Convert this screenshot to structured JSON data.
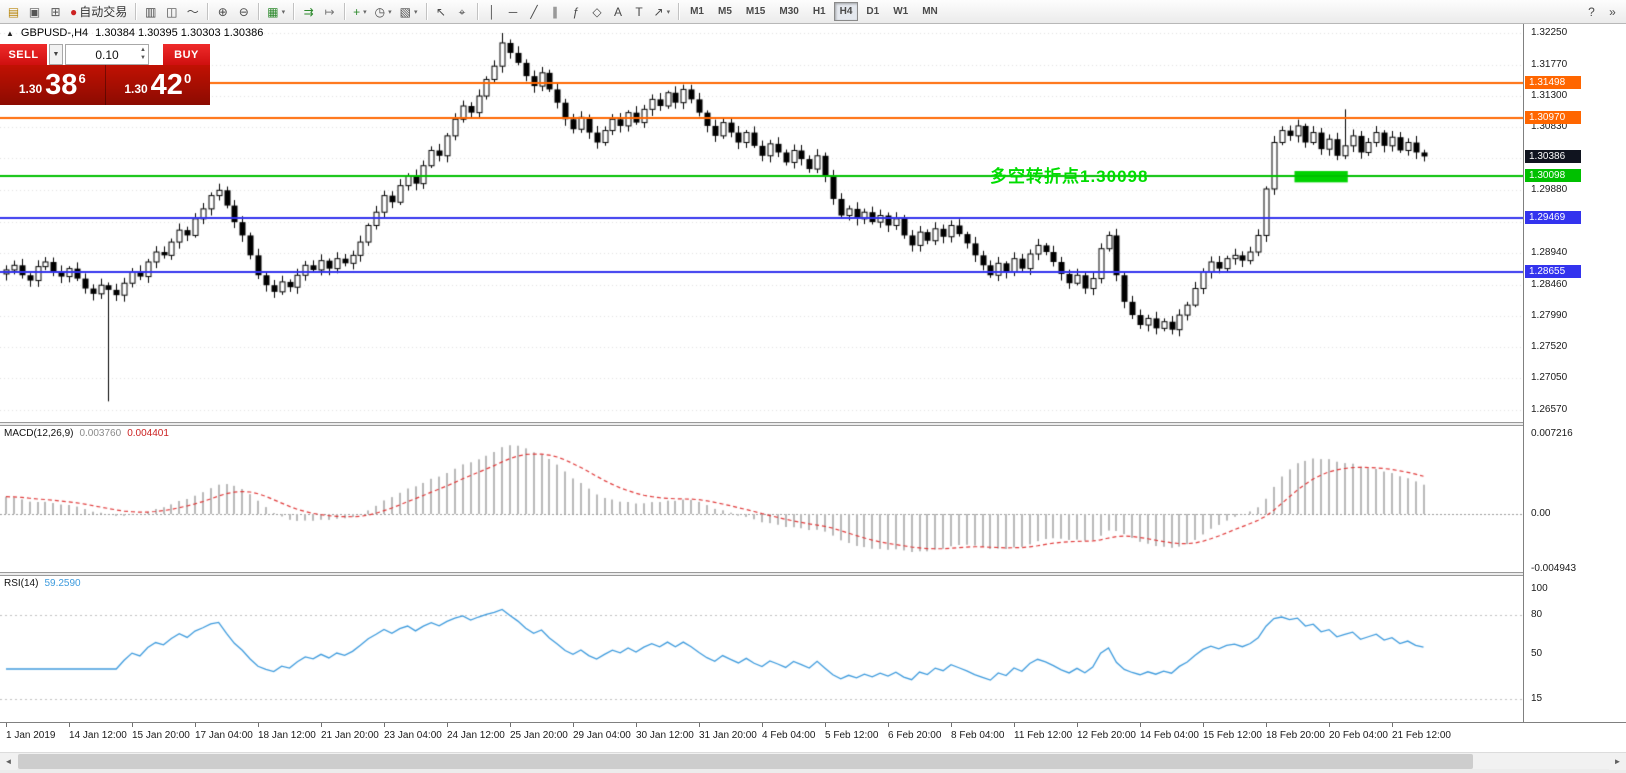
{
  "toolbar": {
    "left_groups": [
      [
        {
          "name": "new-order",
          "glyph": "▤",
          "color": "#b8860b"
        },
        {
          "name": "chart-windows",
          "glyph": "▣",
          "color": "#555555"
        },
        {
          "name": "data-window",
          "glyph": "⊞",
          "color": "#555555"
        },
        {
          "name": "auto-trading",
          "glyph": "●",
          "color": "#cc2222",
          "label": "自动交易"
        }
      ],
      [
        {
          "name": "bar-chart",
          "glyph": "▥"
        },
        {
          "name": "candlestick-chart",
          "glyph": "◫"
        },
        {
          "name": "line-chart",
          "glyph": "～"
        }
      ],
      [
        {
          "name": "zoom-in",
          "glyph": "⊕"
        },
        {
          "name": "zoom-out",
          "glyph": "⊖"
        }
      ],
      [
        {
          "name": "tile-windows",
          "glyph": "▦",
          "color": "#2d8a2d",
          "dropdown": true
        }
      ],
      [
        {
          "name": "auto-scroll",
          "glyph": "⇉",
          "color": "#2d8a2d"
        },
        {
          "name": "chart-shift",
          "glyph": "↦",
          "color": "#777777"
        }
      ],
      [
        {
          "name": "indicators",
          "glyph": "+",
          "color": "#2d8a2d",
          "dropdown": true
        },
        {
          "name": "periods",
          "glyph": "◷",
          "dropdown": true
        },
        {
          "name": "templates",
          "glyph": "▧",
          "dropdown": true
        }
      ],
      [
        {
          "name": "cursor",
          "glyph": "↖"
        },
        {
          "name": "crosshair",
          "glyph": "⌖"
        }
      ],
      [
        {
          "name": "vertical-line",
          "glyph": "│"
        },
        {
          "name": "horizontal-line",
          "glyph": "─"
        },
        {
          "name": "trendline",
          "glyph": "╱"
        },
        {
          "name": "equidistant-channel",
          "glyph": "∥"
        },
        {
          "name": "fibonacci-retracement",
          "glyph": "ƒ"
        },
        {
          "name": "shapes",
          "glyph": "◇"
        },
        {
          "name": "text",
          "glyph": "A"
        },
        {
          "name": "text-label",
          "glyph": "T"
        },
        {
          "name": "arrow-tools",
          "glyph": "↗",
          "dropdown": true
        }
      ]
    ],
    "timeframes": [
      {
        "label": "M1"
      },
      {
        "label": "M5"
      },
      {
        "label": "M15"
      },
      {
        "label": "M30"
      },
      {
        "label": "H1"
      },
      {
        "label": "H4",
        "active": true
      },
      {
        "label": "D1"
      },
      {
        "label": "W1"
      },
      {
        "label": "MN"
      }
    ],
    "right_icons": [
      {
        "name": "help",
        "glyph": "?"
      },
      {
        "name": "toolbar-overflow",
        "glyph": "»"
      }
    ]
  },
  "symbol_bar": {
    "collapse_icon": "▲",
    "symbol": "GBPUSD-,H4",
    "ohlc": "1.30384 1.30395 1.30303 1.30386"
  },
  "trade_panel": {
    "sell_label": "SELL",
    "buy_label": "BUY",
    "volume": "0.10",
    "caret_icon": "▼",
    "spin_up_icon": "▲",
    "spin_down_icon": "▼",
    "sell_price_prefix": "1.30",
    "sell_price_big": "38",
    "sell_price_sup": "6",
    "buy_price_prefix": "1.30",
    "buy_price_big": "42",
    "buy_price_sup": "0"
  },
  "annotation": {
    "text": "多空转折点1.30098",
    "color": "#00dd00",
    "bar": 125,
    "price": 1.3003
  },
  "highlight_rect": {
    "bar_start": 164,
    "bar_end": 170,
    "price_top": 1.3017,
    "price_bottom": 1.3,
    "color": "#00d200"
  },
  "hlines": [
    {
      "price": 1.31498,
      "label": "1.31498",
      "color": "#ff6600"
    },
    {
      "price": 1.3097,
      "label": "1.30970",
      "color": "#ff6600"
    },
    {
      "price": 1.30098,
      "label": "1.30098",
      "color": "#00c000"
    },
    {
      "price": 1.29469,
      "label": "1.29469",
      "color": "#3333ee"
    },
    {
      "price": 1.28655,
      "label": "1.28655",
      "color": "#3333ee"
    }
  ],
  "current_price": {
    "value": 1.30386,
    "label": "1.30386",
    "bg": "#10141f"
  },
  "price_axis": {
    "labels": [
      "1.32250",
      "1.31770",
      "1.31300",
      "1.30830",
      "1.30360",
      "1.29880",
      "1.29410",
      "1.28940",
      "1.28460",
      "1.27990",
      "1.27520",
      "1.27050",
      "1.26570"
    ],
    "values": [
      1.3225,
      1.3177,
      1.313,
      1.3083,
      1.3036,
      1.2988,
      1.2941,
      1.2894,
      1.2846,
      1.2799,
      1.2752,
      1.2705,
      1.2657
    ]
  },
  "macd": {
    "label": "MACD(12,26,9)",
    "value_main": "0.003760",
    "value_signal": "0.004401",
    "axis_labels": [
      "0.007216",
      "0.00",
      "-0.004943"
    ],
    "axis_values": [
      0.007216,
      0,
      -0.004943
    ],
    "histogram_color": "#b9b9b9",
    "signal_color": "#e03a3a"
  },
  "rsi": {
    "label": "RSI(14)",
    "value": "59.2590",
    "axis_labels": [
      "100",
      "80",
      "50",
      "15"
    ],
    "axis_values": [
      100,
      80,
      50,
      15
    ],
    "levels": [
      80,
      15
    ],
    "line_color": "#3e9bdd"
  },
  "time_axis": {
    "labels": [
      "1 Jan 2019",
      "14 Jan 12:00",
      "15 Jan 20:00",
      "17 Jan 04:00",
      "18 Jan 12:00",
      "21 Jan 20:00",
      "23 Jan 04:00",
      "24 Jan 12:00",
      "25 Jan 20:00",
      "29 Jan 04:00",
      "30 Jan 12:00",
      "31 Jan 20:00",
      "4 Feb 04:00",
      "5 Feb 12:00",
      "6 Feb 20:00",
      "8 Feb 04:00",
      "11 Feb 12:00",
      "12 Feb 20:00",
      "14 Feb 04:00",
      "15 Feb 12:00",
      "18 Feb 20:00",
      "20 Feb 04:00",
      "21 Feb 12:00"
    ]
  },
  "chart_data": {
    "type": "candlestick",
    "symbol": "GBPUSD-",
    "timeframe": "H4",
    "y_range": [
      1.2657,
      1.3225
    ],
    "first_open": 1.2862,
    "closes": [
      1.2868,
      1.2875,
      1.286,
      1.2852,
      1.2873,
      1.288,
      1.2865,
      1.2858,
      1.287,
      1.2855,
      1.284,
      1.2832,
      1.2845,
      1.2838,
      1.283,
      1.2848,
      1.2865,
      1.2858,
      1.288,
      1.2895,
      1.289,
      1.291,
      1.2928,
      1.292,
      1.2945,
      1.296,
      1.298,
      1.2988,
      1.2965,
      1.294,
      1.292,
      1.289,
      1.286,
      1.2845,
      1.2835,
      1.285,
      1.2842,
      1.286,
      1.2875,
      1.2868,
      1.2882,
      1.287,
      1.2885,
      1.2878,
      1.289,
      1.291,
      1.2935,
      1.2955,
      1.298,
      1.297,
      1.2995,
      1.301,
      1.2998,
      1.3025,
      1.3048,
      1.304,
      1.307,
      1.3095,
      1.3115,
      1.3105,
      1.313,
      1.3155,
      1.3175,
      1.321,
      1.3195,
      1.318,
      1.316,
      1.3145,
      1.3165,
      1.314,
      1.312,
      1.3095,
      1.308,
      1.3098,
      1.3075,
      1.306,
      1.3078,
      1.3095,
      1.3085,
      1.3105,
      1.309,
      1.311,
      1.3125,
      1.3115,
      1.3135,
      1.312,
      1.314,
      1.3125,
      1.3105,
      1.3085,
      1.307,
      1.309,
      1.3075,
      1.306,
      1.3075,
      1.3055,
      1.304,
      1.3058,
      1.3045,
      1.303,
      1.3048,
      1.3035,
      1.302,
      1.304,
      1.301,
      1.2975,
      1.295,
      1.296,
      1.2945,
      1.2955,
      1.294,
      1.295,
      1.2935,
      1.2945,
      1.292,
      1.2905,
      1.2925,
      1.2912,
      1.293,
      1.2918,
      1.2935,
      1.2922,
      1.2908,
      1.289,
      1.2875,
      1.286,
      1.2878,
      1.2865,
      1.2885,
      1.287,
      1.2892,
      1.2905,
      1.2895,
      1.288,
      1.2862,
      1.2848,
      1.286,
      1.284,
      1.2855,
      1.29,
      1.292,
      1.286,
      1.282,
      1.28,
      1.2785,
      1.2795,
      1.278,
      1.279,
      1.2778,
      1.28,
      1.2815,
      1.284,
      1.2865,
      1.288,
      1.287,
      1.2885,
      1.289,
      1.2882,
      1.2895,
      1.292,
      1.299,
      1.306,
      1.3078,
      1.307,
      1.3085,
      1.306,
      1.3075,
      1.305,
      1.3065,
      1.304,
      1.3055,
      1.307,
      1.3045,
      1.306,
      1.3075,
      1.3055,
      1.3068,
      1.3048,
      1.306,
      1.3045,
      1.3039
    ],
    "wick_overrides": {
      "13": {
        "low": 1.267
      },
      "63": {
        "high": 1.3225
      },
      "170": {
        "high": 1.311
      }
    },
    "indicators": [
      {
        "type": "MACD",
        "params": [
          12,
          26,
          9
        ],
        "current": [
          0.00376,
          0.004401
        ],
        "range": [
          -0.004943,
          0.007216
        ]
      },
      {
        "type": "RSI",
        "params": [
          14
        ],
        "current": 59.259,
        "range": [
          0,
          100
        ]
      }
    ]
  },
  "scrollbar": {
    "left_arrow": "◄",
    "right_arrow": "►"
  }
}
